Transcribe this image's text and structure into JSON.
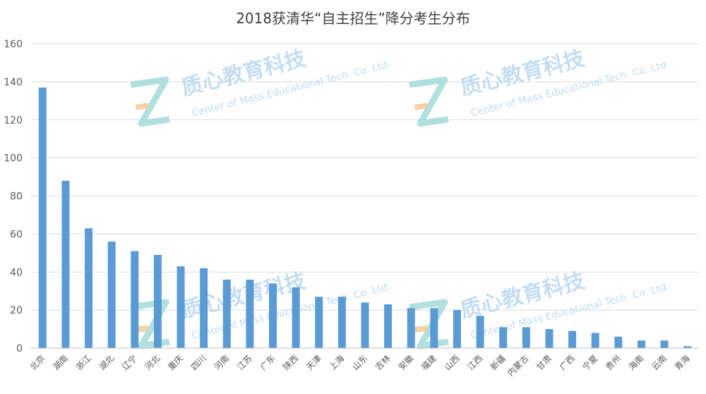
{
  "chart_data": {
    "type": "bar",
    "title": "2018获清华“自主招生”降分考生分布",
    "xlabel": "",
    "ylabel": "",
    "ylim": [
      0,
      160
    ],
    "yticks": [
      0,
      20,
      40,
      60,
      80,
      100,
      120,
      140,
      160
    ],
    "grid": true,
    "bar_color": "#5b9bd5",
    "categories": [
      "北京",
      "湖南",
      "浙江",
      "湖北",
      "辽宁",
      "河北",
      "重庆",
      "四川",
      "河南",
      "江苏",
      "广东",
      "陕西",
      "天津",
      "上海",
      "山东",
      "吉林",
      "安徽",
      "福建",
      "山西",
      "江西",
      "新疆",
      "内蒙古",
      "甘肃",
      "广西",
      "宁夏",
      "贵州",
      "海南",
      "云南",
      "青海"
    ],
    "values": [
      137,
      88,
      63,
      56,
      51,
      49,
      43,
      42,
      36,
      36,
      34,
      32,
      27,
      27,
      24,
      23,
      21,
      21,
      20,
      17,
      11,
      11,
      10,
      9,
      8,
      6,
      4,
      4,
      1
    ]
  },
  "watermark": {
    "cn": "质心教育科技",
    "en": "Center of Mass Educational Tech. Co. Ltd.",
    "logo_letter": "Z"
  }
}
